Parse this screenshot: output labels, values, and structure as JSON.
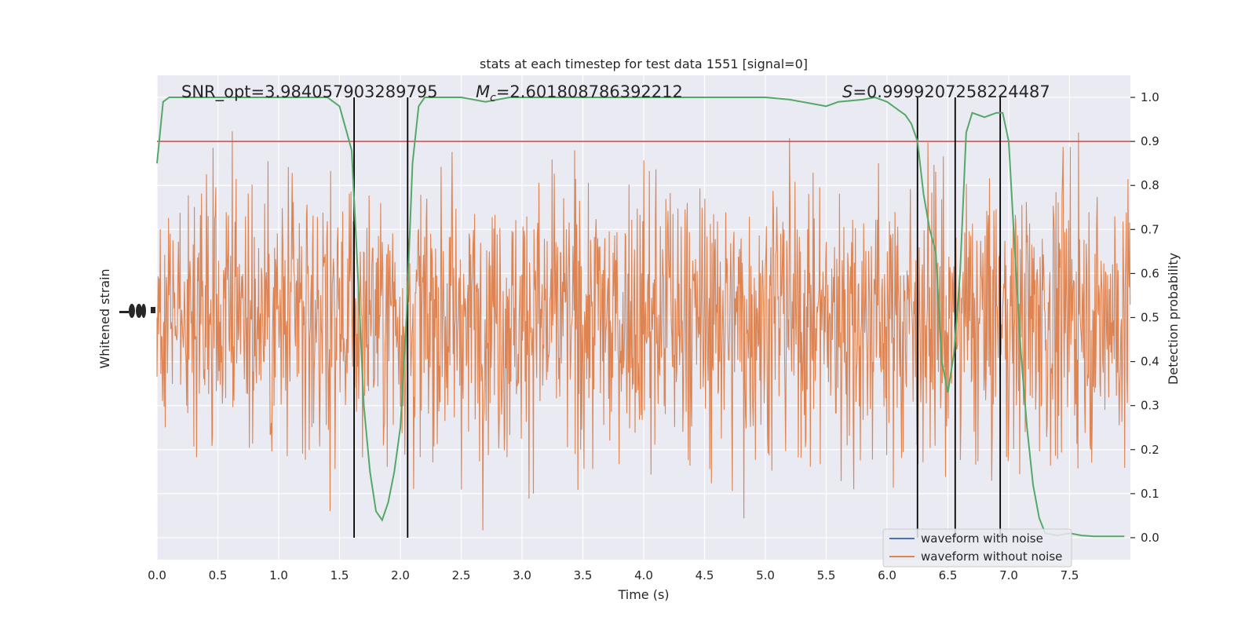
{
  "chart_data": {
    "type": "line",
    "title": "stats at each timestep for test data 1551 [signal=0]",
    "xlabel": "Time (s)",
    "ylabel_left": "Whitened strain",
    "ylabel_right": "Detection probability",
    "xlim": [
      0,
      8
    ],
    "ylim_right": [
      -0.05,
      1.05
    ],
    "x_ticks": [
      "0.0",
      "0.5",
      "1.0",
      "1.5",
      "2.0",
      "2.5",
      "3.0",
      "3.5",
      "4.0",
      "4.5",
      "5.0",
      "5.5",
      "6.0",
      "6.5",
      "7.0",
      "7.5"
    ],
    "x_tick_values": [
      0,
      0.5,
      1,
      1.5,
      2,
      2.5,
      3,
      3.5,
      4,
      4.5,
      5,
      5.5,
      6,
      6.5,
      7,
      7.5
    ],
    "y_ticks_right": [
      "0.0",
      "0.1",
      "0.2",
      "0.3",
      "0.4",
      "0.5",
      "0.6",
      "0.7",
      "0.8",
      "0.9",
      "1.0"
    ],
    "y_tick_values_right": [
      0,
      0.1,
      0.2,
      0.3,
      0.4,
      0.5,
      0.6,
      0.7,
      0.8,
      0.9,
      1.0
    ],
    "grid": true,
    "background": "#eaeaf2",
    "annotations": {
      "snr": "SNR_opt=3.984057903289795",
      "mc_symbol": "M",
      "mc_sub": "c",
      "mc_value": "=2.601808786392212",
      "s_symbol": "S",
      "s_value": "=0.9999207258224487"
    },
    "threshold": {
      "value": 0.9,
      "color": "#c44e52"
    },
    "vertical_markers": [
      1.62,
      2.06,
      6.25,
      6.56,
      6.93
    ],
    "detection_probability": {
      "color": "#55a868",
      "x": [
        0.0,
        0.05,
        0.1,
        0.2,
        0.5,
        1.0,
        1.4,
        1.5,
        1.55,
        1.6,
        1.65,
        1.7,
        1.75,
        1.8,
        1.85,
        1.9,
        1.95,
        2.0,
        2.05,
        2.1,
        2.15,
        2.2,
        2.5,
        2.7,
        2.9,
        3.2,
        3.5,
        4.0,
        4.5,
        5.0,
        5.2,
        5.3,
        5.4,
        5.5,
        5.55,
        5.6,
        5.8,
        5.9,
        6.0,
        6.1,
        6.15,
        6.2,
        6.25,
        6.3,
        6.35,
        6.4,
        6.45,
        6.5,
        6.55,
        6.6,
        6.65,
        6.7,
        6.75,
        6.8,
        6.85,
        6.9,
        6.95,
        7.0,
        7.05,
        7.1,
        7.15,
        7.2,
        7.25,
        7.3,
        7.4,
        7.5,
        7.6,
        7.7,
        7.8,
        7.95
      ],
      "y": [
        0.85,
        0.99,
        1.0,
        1.0,
        1.0,
        1.0,
        1.0,
        0.98,
        0.93,
        0.88,
        0.6,
        0.3,
        0.15,
        0.06,
        0.04,
        0.08,
        0.15,
        0.25,
        0.5,
        0.85,
        0.98,
        1.0,
        1.0,
        0.99,
        1.0,
        1.0,
        1.0,
        1.0,
        1.0,
        1.0,
        0.995,
        0.99,
        0.985,
        0.98,
        0.985,
        0.99,
        0.995,
        1.0,
        0.99,
        0.97,
        0.96,
        0.94,
        0.9,
        0.78,
        0.7,
        0.65,
        0.4,
        0.33,
        0.42,
        0.6,
        0.92,
        0.965,
        0.96,
        0.955,
        0.96,
        0.965,
        0.965,
        0.9,
        0.65,
        0.42,
        0.25,
        0.12,
        0.045,
        0.01,
        0.005,
        0.01,
        0.005,
        0.003,
        0.003,
        0.003
      ]
    },
    "series": [
      {
        "name": "waveform with noise",
        "color": "#4c72b0"
      },
      {
        "name": "waveform without noise",
        "color": "#dd8452"
      }
    ],
    "legend_position": "bottom-right"
  }
}
